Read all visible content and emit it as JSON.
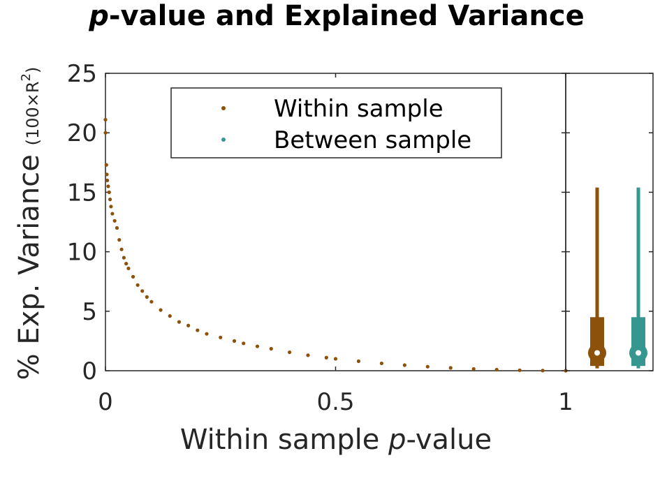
{
  "chart_data": {
    "type": "scatter",
    "title_italic": "p",
    "title_rest": "-value and Explained Variance",
    "xlabel_pre": "Within sample ",
    "xlabel_italic": "p",
    "xlabel_post": "-value",
    "ylabel_main": "% Exp. Variance ",
    "ylabel_paren": "(100×R",
    "ylabel_sup": "2",
    "ylabel_close": ")",
    "xlim": [
      0,
      1
    ],
    "ylim": [
      0,
      25
    ],
    "xticks": [
      {
        "value": 0,
        "label": "0"
      },
      {
        "value": 0.5,
        "label": "0.5"
      },
      {
        "value": 1,
        "label": "1"
      }
    ],
    "yticks": [
      {
        "value": 0,
        "label": "0"
      },
      {
        "value": 5,
        "label": "5"
      },
      {
        "value": 10,
        "label": "10"
      },
      {
        "value": 15,
        "label": "15"
      },
      {
        "value": 20,
        "label": "20"
      },
      {
        "value": 25,
        "label": "25"
      }
    ],
    "grid": false,
    "legend_position": "top-center",
    "series": [
      {
        "name": "Within sample",
        "color": "#8c510a",
        "points": [
          [
            0.0,
            21.1
          ],
          [
            0.0,
            20.0
          ],
          [
            0.002,
            17.3
          ],
          [
            0.003,
            16.5
          ],
          [
            0.004,
            16.0
          ],
          [
            0.006,
            15.5
          ],
          [
            0.008,
            15.0
          ],
          [
            0.01,
            14.4
          ],
          [
            0.012,
            13.8
          ],
          [
            0.015,
            13.2
          ],
          [
            0.02,
            12.6
          ],
          [
            0.025,
            12.0
          ],
          [
            0.03,
            11.0
          ],
          [
            0.035,
            10.2
          ],
          [
            0.04,
            9.5
          ],
          [
            0.045,
            9.0
          ],
          [
            0.05,
            8.6
          ],
          [
            0.06,
            7.9
          ],
          [
            0.07,
            7.2
          ],
          [
            0.08,
            6.7
          ],
          [
            0.09,
            6.2
          ],
          [
            0.1,
            5.8
          ],
          [
            0.12,
            5.1
          ],
          [
            0.14,
            4.6
          ],
          [
            0.16,
            4.1
          ],
          [
            0.18,
            3.8
          ],
          [
            0.2,
            3.4
          ],
          [
            0.22,
            3.1
          ],
          [
            0.25,
            2.8
          ],
          [
            0.28,
            2.5
          ],
          [
            0.3,
            2.3
          ],
          [
            0.33,
            2.05
          ],
          [
            0.36,
            1.85
          ],
          [
            0.4,
            1.55
          ],
          [
            0.44,
            1.3
          ],
          [
            0.48,
            1.1
          ],
          [
            0.5,
            1.0
          ],
          [
            0.55,
            0.8
          ],
          [
            0.6,
            0.62
          ],
          [
            0.65,
            0.47
          ],
          [
            0.7,
            0.34
          ],
          [
            0.75,
            0.24
          ],
          [
            0.8,
            0.15
          ],
          [
            0.85,
            0.09
          ],
          [
            0.9,
            0.04
          ],
          [
            0.95,
            0.015
          ],
          [
            1.0,
            0.0
          ]
        ]
      },
      {
        "name": "Between sample",
        "color": "#35978f",
        "points": []
      }
    ],
    "side_panels": [
      {
        "series": "Within sample",
        "color": "#8c510a",
        "whisker": [
          0.2,
          15.4
        ],
        "box": [
          0.4,
          4.5
        ],
        "median": 1.5
      },
      {
        "series": "Between sample",
        "color": "#35978f",
        "whisker": [
          0.2,
          15.4
        ],
        "box": [
          0.4,
          4.5
        ],
        "median": 1.5
      }
    ]
  }
}
